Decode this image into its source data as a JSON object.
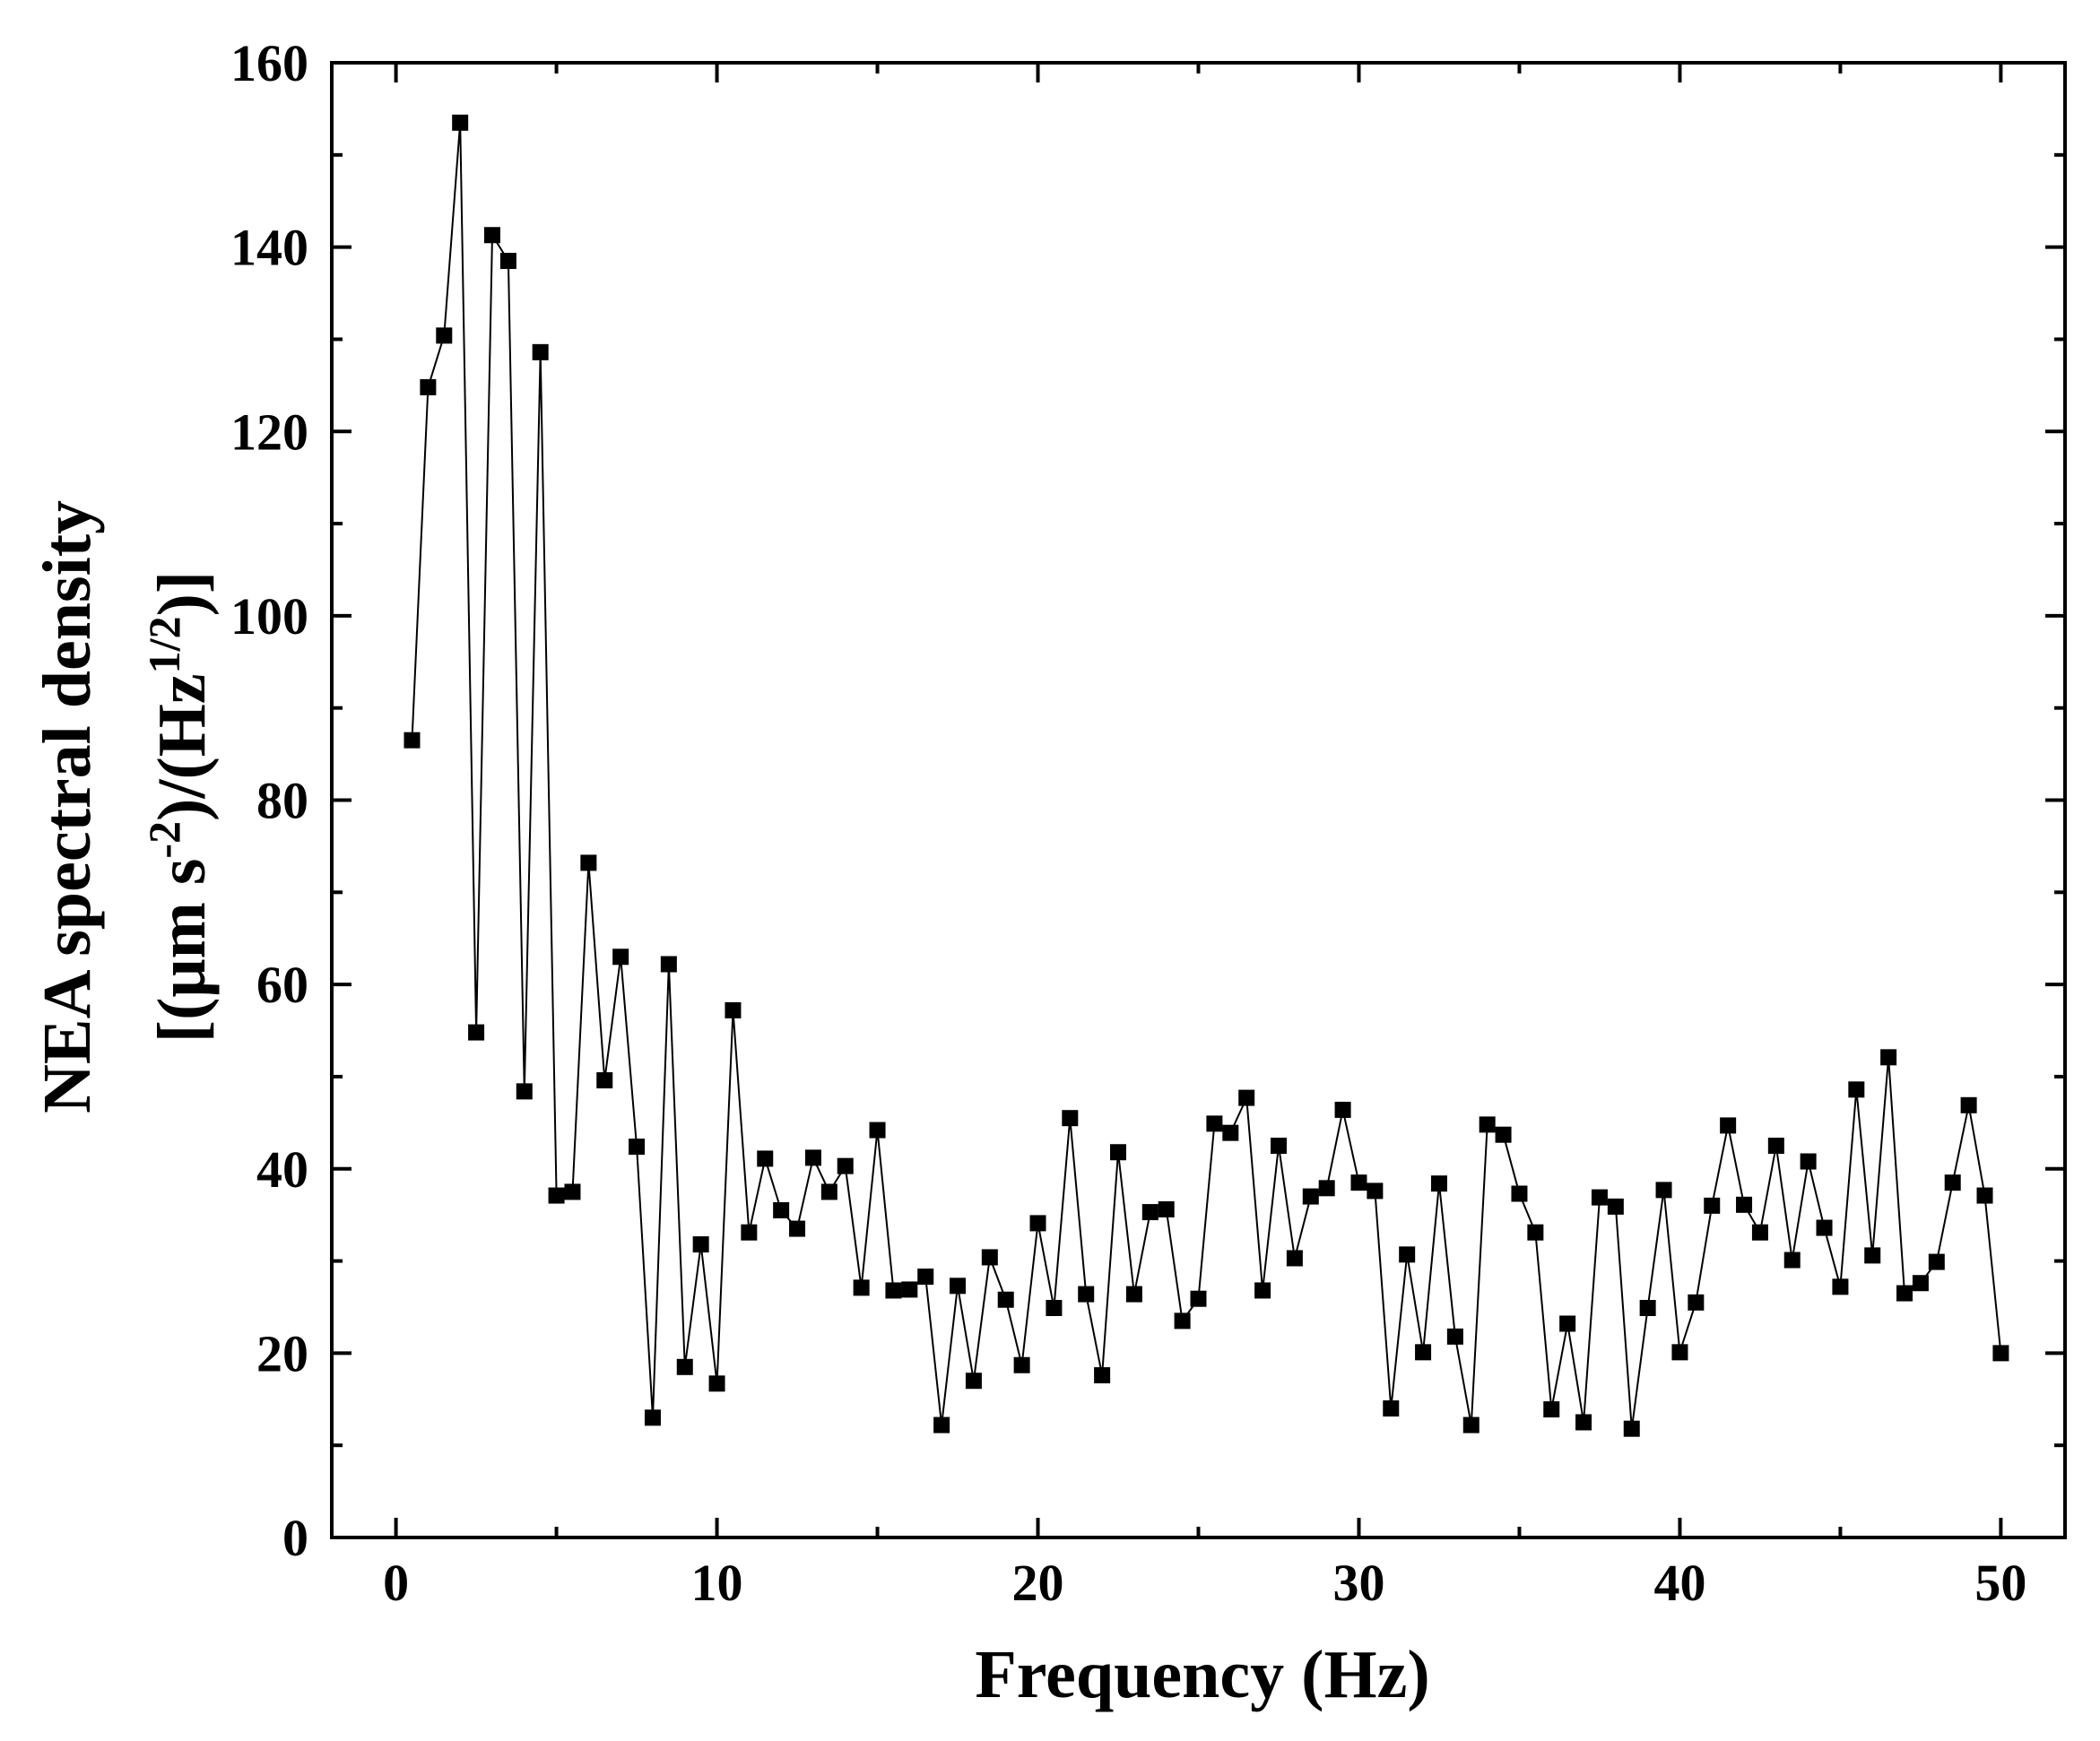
{
  "chart_data": {
    "type": "scatter",
    "markers": "square",
    "connected": true,
    "title": "",
    "xlabel": "Frequency (Hz)",
    "ylabel_line1": "NEA spectral density",
    "ylabel_line2": {
      "prefix": "[(μm s",
      "sup1": "-2",
      "mid": ")/(Hz",
      "sup2": "1/2",
      "suffix": ")]"
    },
    "xlim": [
      -2,
      52
    ],
    "ylim": [
      0,
      160
    ],
    "xticks": [
      0,
      10,
      20,
      30,
      40,
      50
    ],
    "yticks": [
      0,
      20,
      40,
      60,
      80,
      100,
      120,
      140,
      160
    ],
    "grid": false,
    "legend": "none",
    "series": [
      {
        "x": [
          0.5,
          1.0,
          1.5,
          2.0,
          2.5,
          3.0,
          3.5,
          4.0,
          4.5,
          5.0,
          5.5,
          6.0,
          6.5,
          7.0,
          7.5,
          8.0,
          8.5,
          9.0,
          9.5,
          10.0,
          10.5,
          11.0,
          11.5,
          12.0,
          12.5,
          13.0,
          13.5,
          14.0,
          14.5,
          15.0,
          15.5,
          16.0,
          16.5,
          17.0,
          17.5,
          18.0,
          18.5,
          19.0,
          19.5,
          20.0,
          20.5,
          21.0,
          21.5,
          22.0,
          22.5,
          23.0,
          23.5,
          24.0,
          24.5,
          25.0,
          25.5,
          26.0,
          26.5,
          27.0,
          27.5,
          28.0,
          28.5,
          29.0,
          29.5,
          30.0,
          30.5,
          31.0,
          31.5,
          32.0,
          32.5,
          33.0,
          33.5,
          34.0,
          34.5,
          35.0,
          35.5,
          36.0,
          36.5,
          37.0,
          37.5,
          38.0,
          38.5,
          39.0,
          39.5,
          40.0,
          40.5,
          41.0,
          41.5,
          42.0,
          42.5,
          43.0,
          43.5,
          44.0,
          44.5,
          45.0,
          45.5,
          46.0,
          46.5,
          47.0,
          47.5,
          48.0,
          48.5,
          49.0,
          49.5,
          50.0
        ],
        "y": [
          86.5,
          124.8,
          130.4,
          153.5,
          54.8,
          141.3,
          138.5,
          48.4,
          128.6,
          37.1,
          37.5,
          73.2,
          49.6,
          63.0,
          42.4,
          13.0,
          62.2,
          18.5,
          31.8,
          16.7,
          57.2,
          33.1,
          41.1,
          35.5,
          33.5,
          41.2,
          37.5,
          40.3,
          27.1,
          44.2,
          26.8,
          26.9,
          28.3,
          12.2,
          27.3,
          17.0,
          30.4,
          25.8,
          18.7,
          34.1,
          24.9,
          45.5,
          26.4,
          17.6,
          41.8,
          26.4,
          35.3,
          35.6,
          23.5,
          25.9,
          44.9,
          43.9,
          47.7,
          26.8,
          42.5,
          30.3,
          37.0,
          37.9,
          46.4,
          38.5,
          37.6,
          14.0,
          30.7,
          20.1,
          38.4,
          21.8,
          12.2,
          44.8,
          43.7,
          37.3,
          33.1,
          13.9,
          23.2,
          12.5,
          36.9,
          35.9,
          11.8,
          24.9,
          37.7,
          20.1,
          25.5,
          36.0,
          44.7,
          36.1,
          33.1,
          42.5,
          30.1,
          40.8,
          33.6,
          27.2,
          48.6,
          30.6,
          52.1,
          26.5,
          27.6,
          29.9,
          38.5,
          46.9,
          37.1,
          20.0
        ]
      }
    ],
    "colors": {
      "marker": "#000000",
      "line": "#000000",
      "axis": "#000000"
    }
  }
}
